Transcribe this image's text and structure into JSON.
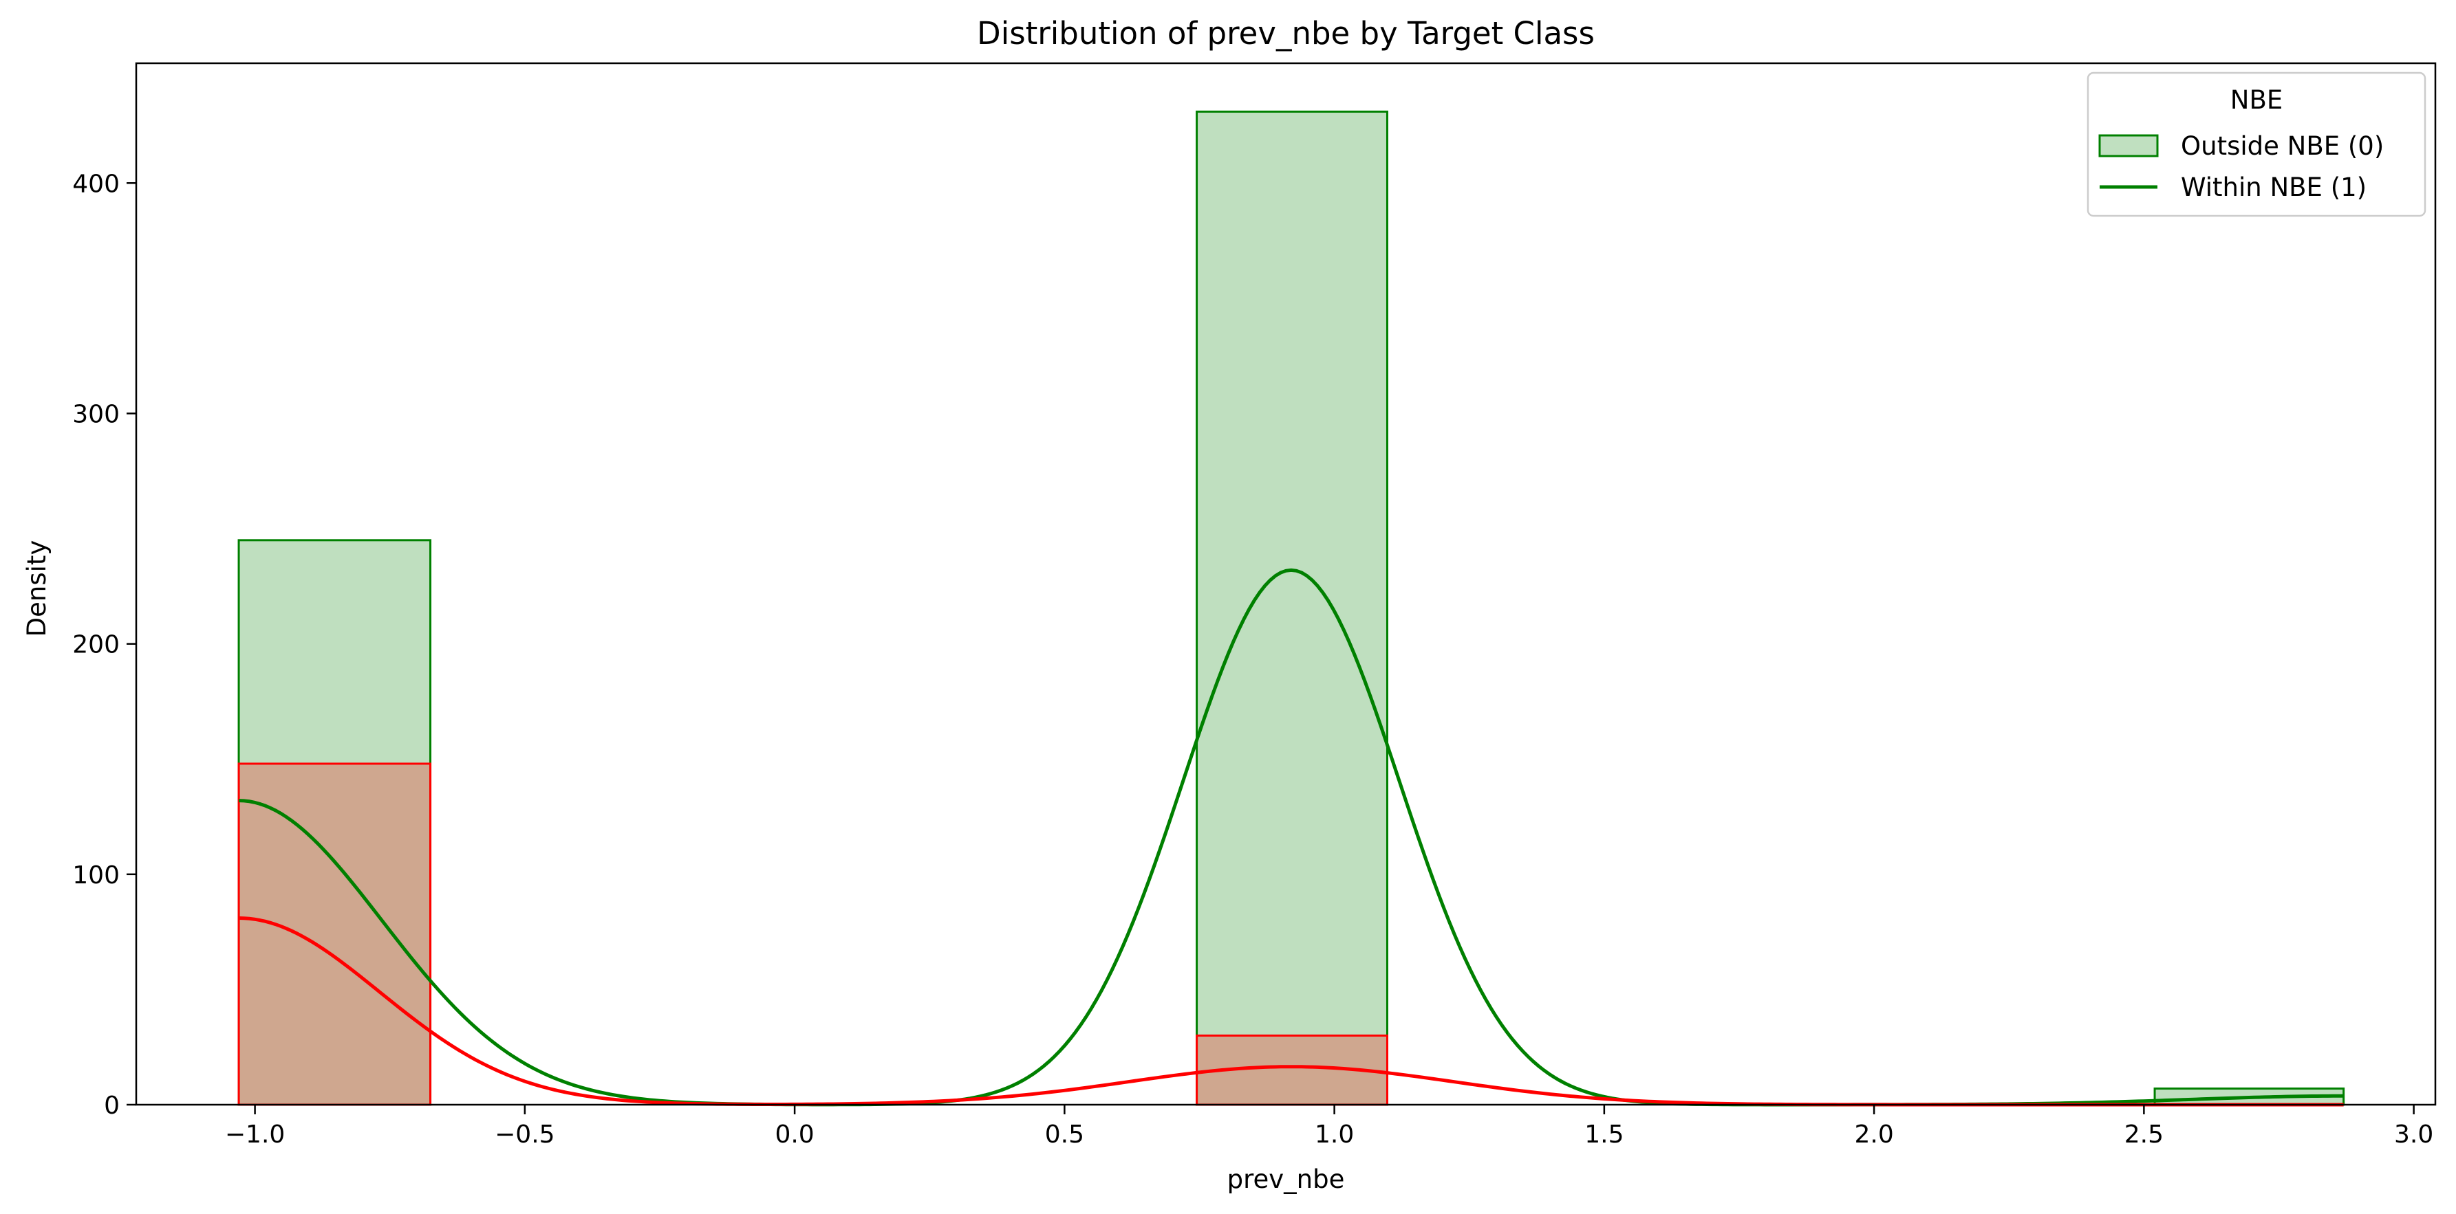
{
  "chart_data": {
    "type": "bar",
    "title": "Distribution of prev_nbe by Target Class",
    "xlabel": "prev_nbe",
    "ylabel": "Density",
    "xlim": [
      -1.22,
      3.04
    ],
    "ylim": [
      0,
      452
    ],
    "xticks": [
      -1.0,
      -0.5,
      0.0,
      0.5,
      1.0,
      1.5,
      2.0,
      2.5,
      3.0
    ],
    "xtick_labels": [
      "−1.0",
      "−0.5",
      "0.0",
      "0.5",
      "1.0",
      "1.5",
      "2.0",
      "2.5",
      "3.0"
    ],
    "yticks": [
      0,
      100,
      200,
      300,
      400
    ],
    "ytick_labels": [
      "0",
      "100",
      "200",
      "300",
      "400"
    ],
    "grid": false,
    "legend": {
      "title": "NBE",
      "placement": "top-right",
      "entries": [
        {
          "label": "Outside NBE (0)",
          "kind": "patch",
          "color": "#008000",
          "fill": "#c0e0c0"
        },
        {
          "label": "Within NBE (1)",
          "kind": "line",
          "color": "#008000"
        }
      ]
    },
    "series": [
      {
        "key": "outside",
        "edge_color": "#008000",
        "fill_color": "#008000",
        "fill_opacity": 0.25,
        "kde_color": "#008000",
        "bins": [
          {
            "x0": -1.03,
            "x1": -0.675,
            "value": 245
          },
          {
            "x0": 0.745,
            "x1": 1.098,
            "value": 431
          },
          {
            "x0": 2.52,
            "x1": 2.87,
            "value": 7
          }
        ],
        "kde": {
          "x_range": [
            -1.03,
            2.87
          ],
          "components": [
            {
              "mu": -1.03,
              "sigma": 0.265,
              "amp": 132
            },
            {
              "mu": 0.92,
              "sigma": 0.2,
              "amp": 232
            },
            {
              "mu": 2.87,
              "sigma": 0.28,
              "amp": 3.8
            }
          ]
        }
      },
      {
        "key": "within",
        "edge_color": "#ff0000",
        "fill_color": "#ff0000",
        "fill_opacity": 0.25,
        "kde_color": "#ff0000",
        "bins": [
          {
            "x0": -1.03,
            "x1": -0.675,
            "value": 148
          },
          {
            "x0": 0.745,
            "x1": 1.098,
            "value": 30
          }
        ],
        "kde": {
          "x_range": [
            -1.03,
            2.87
          ],
          "components": [
            {
              "mu": -1.03,
              "sigma": 0.26,
              "amp": 81
            },
            {
              "mu": 0.92,
              "sigma": 0.3,
              "amp": 16.5
            }
          ]
        }
      }
    ]
  }
}
